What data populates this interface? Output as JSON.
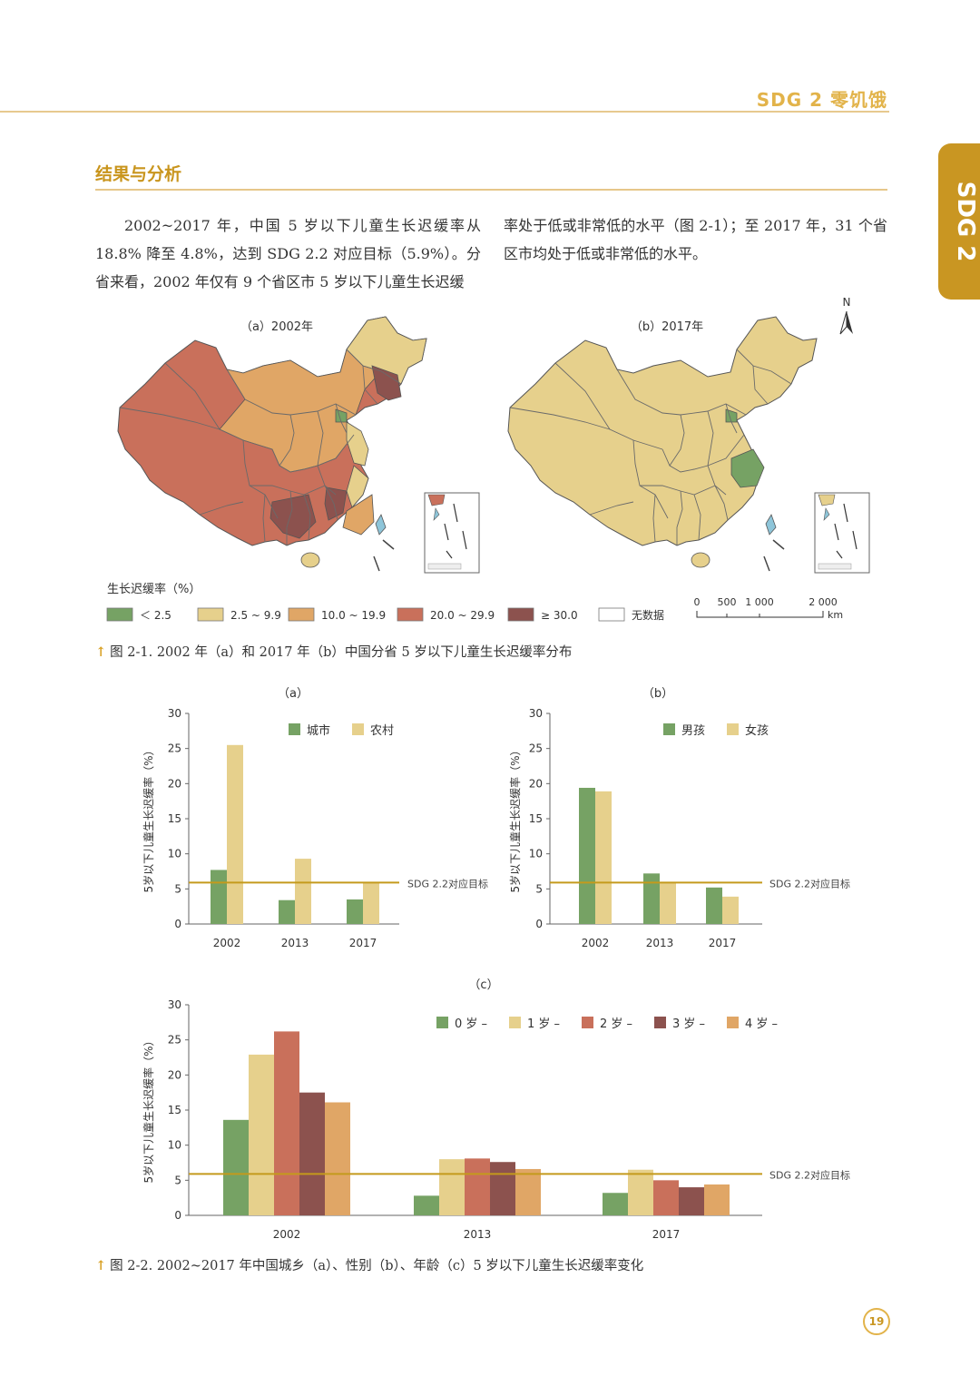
{
  "header": {
    "title": "SDG 2 零饥饿"
  },
  "side_tab": "SDG 2",
  "section": {
    "title": "结果与分析"
  },
  "paragraph_left": "2002~2017 年，中国 5 岁以下儿童生长迟缓率从 18.8% 降至 4.8%，达到 SDG 2.2 对应目标（5.9%）。分省来看，2002 年仅有 9 个省区市 5 岁以下儿童生长迟缓",
  "paragraph_right": "率处于低或非常低的水平（图 2-1）；至 2017 年，31 个省区市均处于低或非常低的水平。",
  "colors": {
    "green": "#76a264",
    "yellow": "#e6d08c",
    "lorange": "#e0a666",
    "red": "#c9705b",
    "dred": "#8c524e",
    "nodata": "#ffffff",
    "target_line": "#c49a1c",
    "accent": "#d9a227"
  },
  "maps": {
    "a_label": "（a）2002年",
    "b_label": "（b）2017年",
    "north": "N",
    "legend_title": "生长迟缓率（%）",
    "legend": [
      {
        "label": "＜ 2.5",
        "color": "#76a264"
      },
      {
        "label": "2.5 ~ 9.9",
        "color": "#e6d08c"
      },
      {
        "label": "10.0 ~ 19.9",
        "color": "#e0a666"
      },
      {
        "label": "20.0 ~ 29.9",
        "color": "#c9705b"
      },
      {
        "label": "≥ 30.0",
        "color": "#8c524e"
      },
      {
        "label": "无数据",
        "color": "#ffffff"
      }
    ],
    "scale_ticks": [
      "0",
      "500",
      "1 000",
      "2 000"
    ],
    "scale_unit": "km"
  },
  "fig1_caption": "图 2-1. 2002 年（a）和 2017 年（b）中国分省 5 岁以下儿童生长迟缓率分布",
  "fig2_caption": "图 2-2. 2002~2017 年中国城乡（a）、性别（b）、年龄（c）5 岁以下儿童生长迟缓率变化",
  "page_number": "19",
  "chart_data": [
    {
      "type": "bar",
      "title": "（a）",
      "categories": [
        "2002",
        "2013",
        "2017"
      ],
      "series": [
        {
          "name": "城市",
          "values": [
            7.7,
            3.4,
            3.5
          ],
          "color": "#76a264"
        },
        {
          "name": "农村",
          "values": [
            25.5,
            9.3,
            6.0
          ],
          "color": "#e6d08c"
        }
      ],
      "ylabel": "5岁以下儿童生长迟缓率（%）",
      "ylim": [
        0,
        30
      ],
      "yticks": [
        "0",
        "5",
        "10",
        "15",
        "20",
        "25",
        "30"
      ],
      "target": 5.9,
      "target_label": "SDG 2.2对应目标"
    },
    {
      "type": "bar",
      "title": "（b）",
      "categories": [
        "2002",
        "2013",
        "2017"
      ],
      "series": [
        {
          "name": "男孩",
          "values": [
            19.4,
            7.2,
            5.2
          ],
          "color": "#76a264"
        },
        {
          "name": "女孩",
          "values": [
            18.9,
            6.0,
            3.9
          ],
          "color": "#e6d08c"
        }
      ],
      "ylabel": "5岁以下儿童生长迟缓率（%）",
      "ylim": [
        0,
        30
      ],
      "yticks": [
        "0",
        "5",
        "10",
        "15",
        "20",
        "25",
        "30"
      ],
      "target": 5.9,
      "target_label": "SDG 2.2对应目标"
    },
    {
      "type": "bar",
      "title": "（c）",
      "categories": [
        "2002",
        "2013",
        "2017"
      ],
      "series": [
        {
          "name": "0 岁 –",
          "values": [
            13.6,
            2.8,
            3.2
          ],
          "color": "#76a264"
        },
        {
          "name": "1 岁 –",
          "values": [
            22.9,
            8.0,
            6.5
          ],
          "color": "#e6d08c"
        },
        {
          "name": "2 岁 –",
          "values": [
            26.2,
            8.1,
            5.0
          ],
          "color": "#c9705b"
        },
        {
          "name": "3 岁 –",
          "values": [
            17.5,
            7.6,
            4.0
          ],
          "color": "#8c524e"
        },
        {
          "name": "4 岁 –",
          "values": [
            16.1,
            6.6,
            4.4
          ],
          "color": "#e0a666"
        }
      ],
      "ylabel": "5岁以下儿童生长迟缓率（%）",
      "ylim": [
        0,
        30
      ],
      "yticks": [
        "0",
        "5",
        "10",
        "15",
        "20",
        "25",
        "30"
      ],
      "target": 5.9,
      "target_label": "SDG 2.2对应目标"
    }
  ]
}
